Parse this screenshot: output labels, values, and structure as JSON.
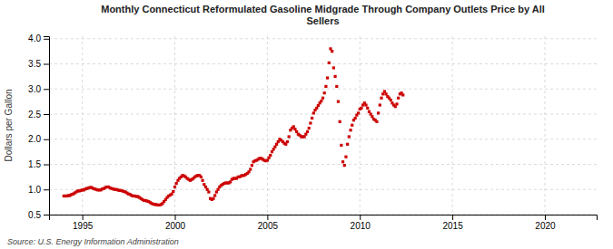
{
  "chart_data": {
    "type": "scatter",
    "title": "Monthly Connecticut Reformulated Gasoline Midgrade Through Company Outlets Price by All\nSellers",
    "ylabel": "Dollars per Gallon",
    "annotations": [
      "Source: U.S. Energy Information Administration"
    ],
    "color": "#cc0000",
    "marker": "square",
    "grid": true,
    "xlim": [
      1993.2,
      2022.8
    ],
    "ylim": [
      0.5,
      4.05
    ],
    "xticks": [
      1995,
      2000,
      2005,
      2010,
      2015,
      2020
    ],
    "yticks": [
      0.5,
      {
        "value": 1.0,
        "label": "1.0"
      },
      1.5,
      {
        "value": 2.0,
        "label": "2.0"
      },
      2.5,
      {
        "value": 3.0,
        "label": "3.0"
      },
      3.5,
      {
        "value": 4.0,
        "label": "4.0"
      }
    ],
    "x": [
      1994.0,
      1994.083,
      1994.167,
      1994.25,
      1994.333,
      1994.417,
      1994.5,
      1994.583,
      1994.667,
      1994.75,
      1994.833,
      1994.917,
      1995.0,
      1995.083,
      1995.167,
      1995.25,
      1995.333,
      1995.417,
      1995.5,
      1995.583,
      1995.667,
      1995.75,
      1995.833,
      1995.917,
      1996.0,
      1996.083,
      1996.167,
      1996.25,
      1996.333,
      1996.417,
      1996.5,
      1996.583,
      1996.667,
      1996.75,
      1996.833,
      1996.917,
      1997.0,
      1997.083,
      1997.167,
      1997.25,
      1997.333,
      1997.417,
      1997.5,
      1997.583,
      1997.667,
      1997.75,
      1997.833,
      1997.917,
      1998.0,
      1998.083,
      1998.167,
      1998.25,
      1998.333,
      1998.417,
      1998.5,
      1998.583,
      1998.667,
      1998.75,
      1998.833,
      1998.917,
      1999.0,
      1999.083,
      1999.167,
      1999.25,
      1999.333,
      1999.417,
      1999.5,
      1999.583,
      1999.667,
      1999.75,
      1999.833,
      1999.917,
      2000.0,
      2000.083,
      2000.167,
      2000.25,
      2000.333,
      2000.417,
      2000.5,
      2000.583,
      2000.667,
      2000.75,
      2000.833,
      2000.917,
      2001.0,
      2001.083,
      2001.167,
      2001.25,
      2001.333,
      2001.417,
      2001.5,
      2001.583,
      2001.667,
      2001.75,
      2001.833,
      2001.917,
      2002.0,
      2002.083,
      2002.167,
      2002.25,
      2002.333,
      2002.417,
      2002.5,
      2002.583,
      2002.667,
      2002.75,
      2002.833,
      2002.917,
      2003.0,
      2003.083,
      2003.167,
      2003.25,
      2003.333,
      2003.417,
      2003.5,
      2003.583,
      2003.667,
      2003.75,
      2003.833,
      2003.917,
      2004.0,
      2004.083,
      2004.167,
      2004.25,
      2004.333,
      2004.417,
      2004.5,
      2004.583,
      2004.667,
      2004.75,
      2004.833,
      2004.917,
      2005.0,
      2005.083,
      2005.167,
      2005.25,
      2005.333,
      2005.417,
      2005.5,
      2005.583,
      2005.667,
      2005.75,
      2005.833,
      2005.917,
      2006.0,
      2006.083,
      2006.167,
      2006.25,
      2006.333,
      2006.417,
      2006.5,
      2006.583,
      2006.667,
      2006.75,
      2006.833,
      2006.917,
      2007.0,
      2007.083,
      2007.167,
      2007.25,
      2007.333,
      2007.417,
      2007.5,
      2007.583,
      2007.667,
      2007.75,
      2007.833,
      2007.917,
      2008.0,
      2008.083,
      2008.167,
      2008.25,
      2008.333,
      2008.417,
      2008.5,
      2008.583,
      2008.667,
      2008.75,
      2008.833,
      2008.917,
      2009.0,
      2009.083,
      2009.167,
      2009.25,
      2009.333,
      2009.417,
      2009.5,
      2009.583,
      2009.667,
      2009.75,
      2009.833,
      2009.917,
      2010.0,
      2010.083,
      2010.167,
      2010.25,
      2010.333,
      2010.417,
      2010.5,
      2010.583,
      2010.667,
      2010.75,
      2010.833,
      2010.917,
      2011.0,
      2011.083,
      2011.167,
      2011.25,
      2011.333,
      2011.417,
      2011.5,
      2011.583,
      2011.667,
      2011.75,
      2011.833,
      2011.917,
      2012.0,
      2012.083,
      2012.167,
      2012.25,
      2012.333
    ],
    "values": [
      0.87,
      0.87,
      0.87,
      0.88,
      0.88,
      0.9,
      0.91,
      0.93,
      0.95,
      0.97,
      0.97,
      0.98,
      0.99,
      0.99,
      1.01,
      1.02,
      1.03,
      1.04,
      1.04,
      1.02,
      1.01,
      1.0,
      0.99,
      0.99,
      0.99,
      1.01,
      1.02,
      1.04,
      1.05,
      1.05,
      1.03,
      1.02,
      1.01,
      1.0,
      1.0,
      0.99,
      0.98,
      0.98,
      0.97,
      0.96,
      0.95,
      0.93,
      0.91,
      0.9,
      0.88,
      0.87,
      0.87,
      0.86,
      0.86,
      0.84,
      0.82,
      0.8,
      0.78,
      0.78,
      0.77,
      0.76,
      0.74,
      0.72,
      0.71,
      0.7,
      0.7,
      0.69,
      0.69,
      0.7,
      0.72,
      0.76,
      0.8,
      0.84,
      0.87,
      0.89,
      0.91,
      0.96,
      1.05,
      1.12,
      1.18,
      1.22,
      1.25,
      1.28,
      1.27,
      1.25,
      1.22,
      1.2,
      1.18,
      1.2,
      1.22,
      1.25,
      1.27,
      1.28,
      1.28,
      1.25,
      1.18,
      1.1,
      1.05,
      1.0,
      0.95,
      0.82,
      0.8,
      0.82,
      0.88,
      0.95,
      1.0,
      1.05,
      1.08,
      1.1,
      1.12,
      1.13,
      1.13,
      1.13,
      1.15,
      1.2,
      1.22,
      1.22,
      1.22,
      1.25,
      1.25,
      1.27,
      1.28,
      1.28,
      1.3,
      1.32,
      1.35,
      1.4,
      1.48,
      1.55,
      1.57,
      1.58,
      1.6,
      1.62,
      1.62,
      1.6,
      1.58,
      1.57,
      1.58,
      1.63,
      1.68,
      1.75,
      1.8,
      1.85,
      1.9,
      1.95,
      2.0,
      1.98,
      1.95,
      1.92,
      1.9,
      1.95,
      2.05,
      2.18,
      2.22,
      2.25,
      2.2,
      2.15,
      2.1,
      2.08,
      2.05,
      2.05,
      2.05,
      2.1,
      2.15,
      2.22,
      2.32,
      2.42,
      2.52,
      2.58,
      2.62,
      2.67,
      2.72,
      2.76,
      2.82,
      2.92,
      3.05,
      3.22,
      3.52,
      3.8,
      3.75,
      3.42,
      3.25,
      3.05,
      2.75,
      2.35,
      1.88,
      1.55,
      1.48,
      1.65,
      1.9,
      2.05,
      2.18,
      2.28,
      2.38,
      2.42,
      2.48,
      2.52,
      2.6,
      2.62,
      2.68,
      2.72,
      2.68,
      2.62,
      2.55,
      2.5,
      2.45,
      2.4,
      2.38,
      2.35,
      2.52,
      2.68,
      2.82,
      2.9,
      2.95,
      2.9,
      2.85,
      2.82,
      2.78,
      2.72,
      2.68,
      2.65,
      2.7,
      2.82,
      2.9,
      2.92,
      2.88
    ]
  }
}
